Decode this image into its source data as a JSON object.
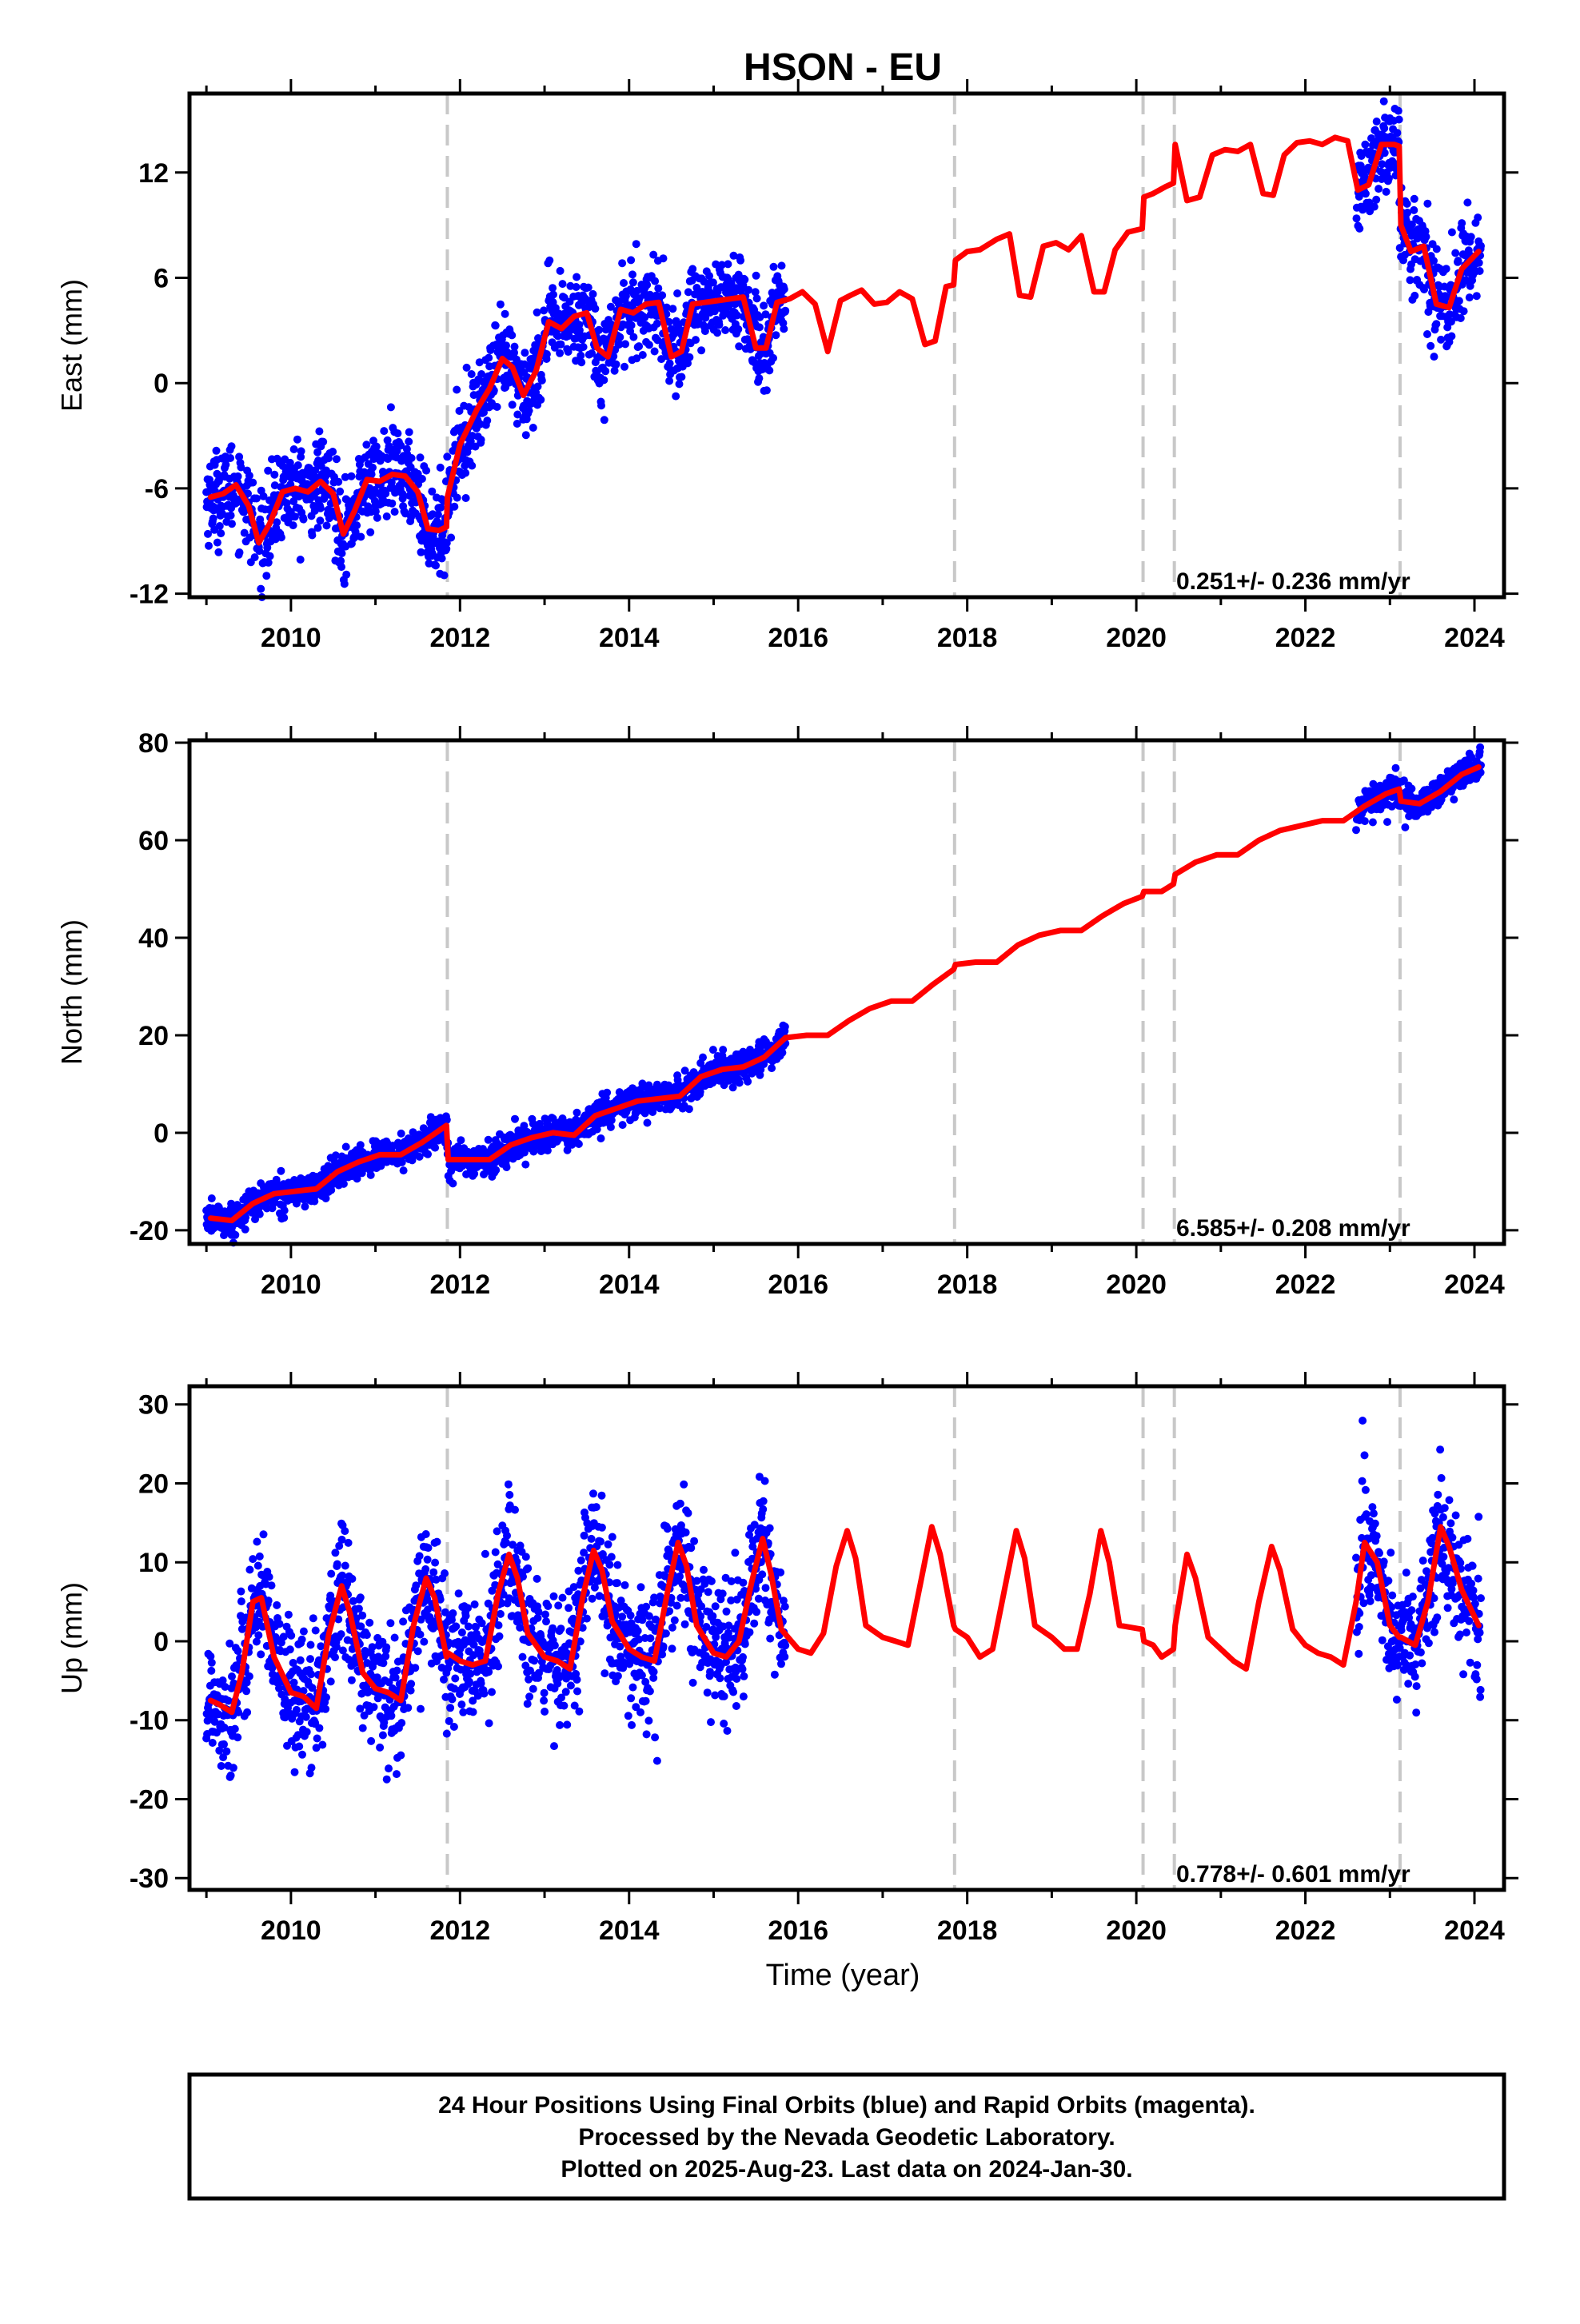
{
  "title": "HSON - EU",
  "xlabel": "Time (year)",
  "footer": {
    "line1": "24 Hour Positions Using Final Orbits (blue) and Rapid Orbits (magenta).",
    "line2": "Processed by the Nevada Geodetic Laboratory.",
    "line3": "Plotted on 2025-Aug-23. Last data on 2024-Jan-30."
  },
  "colors": {
    "observations": "#0000ff",
    "model": "#ff0000",
    "offsets": "#c8c8c8",
    "frame": "#000000"
  },
  "chart_data": [
    {
      "type": "scatter",
      "panel": "east",
      "ylabel": "East (mm)",
      "xlim": [
        2008.8,
        2024.35
      ],
      "ylim": [
        -12.2,
        16.5
      ],
      "xticks": [
        2010,
        2012,
        2014,
        2016,
        2018,
        2020,
        2022,
        2024
      ],
      "yticks": [
        -12,
        -6,
        0,
        6,
        12
      ],
      "rate_label": "0.251+/- 0.236 mm/yr",
      "offset_epochs": [
        2011.85,
        2017.85,
        2020.08,
        2020.45,
        2023.12
      ],
      "series": [
        {
          "type": "line",
          "x": [
            2009.05,
            2009.2,
            2009.35,
            2009.5,
            2009.62,
            2009.75,
            2009.9,
            2010.05,
            2010.2,
            2010.35,
            2010.5,
            2010.62,
            2010.75,
            2010.9,
            2011.05,
            2011.2,
            2011.35,
            2011.5,
            2011.62,
            2011.75,
            2011.84,
            2011.85,
            2012.0,
            2012.2,
            2012.35,
            2012.5,
            2012.62,
            2012.75,
            2012.9,
            2013.05,
            2013.2,
            2013.35,
            2013.5,
            2013.62,
            2013.75,
            2013.9,
            2014.05,
            2014.2,
            2014.35,
            2014.5,
            2014.62,
            2014.75,
            2014.9,
            2015.05,
            2015.2,
            2015.35,
            2015.5,
            2015.62,
            2015.75,
            2015.9,
            2016.05,
            2016.2,
            2016.35,
            2016.5,
            2016.62,
            2016.75,
            2016.9,
            2017.05,
            2017.2,
            2017.35,
            2017.5,
            2017.62,
            2017.75,
            2017.84,
            2017.86,
            2018.0,
            2018.15,
            2018.35,
            2018.5,
            2018.62,
            2018.75,
            2018.9,
            2019.05,
            2019.2,
            2019.35,
            2019.5,
            2019.62,
            2019.75,
            2019.9,
            2020.07,
            2020.09,
            2020.2,
            2020.35,
            2020.44,
            2020.46,
            2020.6,
            2020.75,
            2020.9,
            2021.05,
            2021.2,
            2021.35,
            2021.5,
            2021.62,
            2021.75,
            2021.9,
            2022.05,
            2022.2,
            2022.35,
            2022.5,
            2022.62,
            2022.75,
            2022.9,
            2023.05,
            2023.11,
            2023.13,
            2023.25,
            2023.4,
            2023.55,
            2023.7,
            2023.85,
            2024.05
          ],
          "values": [
            -6.5,
            -6.3,
            -5.8,
            -7.0,
            -9.1,
            -8.0,
            -6.2,
            -6.0,
            -6.2,
            -5.6,
            -6.3,
            -8.6,
            -7.3,
            -5.5,
            -5.6,
            -5.2,
            -5.3,
            -6.2,
            -8.3,
            -8.4,
            -8.2,
            -6.5,
            -3.5,
            -1.5,
            -0.3,
            1.4,
            0.9,
            -0.7,
            0.7,
            3.5,
            3.1,
            3.8,
            4.0,
            2.0,
            1.5,
            4.2,
            4.0,
            4.5,
            4.6,
            1.5,
            1.8,
            4.5,
            4.6,
            4.7,
            4.8,
            4.9,
            2.0,
            2.0,
            4.6,
            4.8,
            5.2,
            4.5,
            1.8,
            4.7,
            5.0,
            5.3,
            4.5,
            4.6,
            5.2,
            4.8,
            2.2,
            2.4,
            5.5,
            5.6,
            7.0,
            7.5,
            7.6,
            8.2,
            8.5,
            5.0,
            4.9,
            7.8,
            8.0,
            7.6,
            8.4,
            5.2,
            5.2,
            7.6,
            8.6,
            8.8,
            10.6,
            10.8,
            11.2,
            11.4,
            13.6,
            10.4,
            10.6,
            13.0,
            13.3,
            13.2,
            13.6,
            10.8,
            10.7,
            13.0,
            13.7,
            13.8,
            13.6,
            14.0,
            13.8,
            11.0,
            11.3,
            13.6,
            13.6,
            13.5,
            9.0,
            7.5,
            7.8,
            4.5,
            4.3,
            6.5,
            7.5
          ]
        }
      ]
    },
    {
      "type": "scatter",
      "panel": "north",
      "ylabel": "North (mm)",
      "xlim": [
        2008.8,
        2024.35
      ],
      "ylim": [
        -22.8,
        80.5
      ],
      "xticks": [
        2010,
        2012,
        2014,
        2016,
        2018,
        2020,
        2022,
        2024
      ],
      "yticks": [
        -20,
        0,
        20,
        40,
        60,
        80
      ],
      "rate_label": "6.585+/- 0.208 mm/yr",
      "offset_epochs": [
        2011.85,
        2017.85,
        2020.08,
        2020.45,
        2023.12
      ],
      "series": [
        {
          "type": "line",
          "x": [
            2009.05,
            2009.3,
            2009.55,
            2009.8,
            2010.05,
            2010.3,
            2010.55,
            2010.8,
            2011.05,
            2011.3,
            2011.55,
            2011.84,
            2011.86,
            2012.1,
            2012.35,
            2012.6,
            2012.85,
            2013.1,
            2013.35,
            2013.6,
            2013.85,
            2014.1,
            2014.35,
            2014.6,
            2014.85,
            2015.1,
            2015.35,
            2015.6,
            2015.85,
            2016.1,
            2016.35,
            2016.6,
            2016.85,
            2017.1,
            2017.35,
            2017.6,
            2017.84,
            2017.86,
            2018.1,
            2018.35,
            2018.6,
            2018.85,
            2019.1,
            2019.35,
            2019.6,
            2019.85,
            2020.07,
            2020.09,
            2020.3,
            2020.44,
            2020.46,
            2020.7,
            2020.95,
            2021.2,
            2021.45,
            2021.7,
            2021.95,
            2022.2,
            2022.45,
            2022.7,
            2022.95,
            2023.11,
            2023.13,
            2023.35,
            2023.6,
            2023.85,
            2024.05
          ],
          "values": [
            -17.5,
            -18.0,
            -14.5,
            -12.5,
            -12.0,
            -11.5,
            -8.0,
            -6.0,
            -4.5,
            -4.5,
            -2.0,
            1.5,
            -5.5,
            -5.5,
            -5.5,
            -2.5,
            -1.0,
            0.0,
            -0.5,
            3.5,
            5.0,
            6.5,
            7.0,
            7.5,
            11.5,
            13.0,
            13.5,
            15.5,
            19.5,
            20.0,
            20.0,
            23.0,
            25.5,
            27.0,
            27.0,
            30.5,
            33.5,
            34.5,
            35.0,
            35.0,
            38.5,
            40.5,
            41.5,
            41.5,
            44.5,
            47.0,
            48.5,
            49.5,
            49.5,
            51.0,
            53.0,
            55.5,
            57.0,
            57.0,
            60.0,
            62.0,
            63.0,
            64.0,
            64.0,
            67.0,
            69.5,
            70.5,
            68.0,
            67.5,
            70.0,
            73.5,
            75.0
          ]
        }
      ]
    },
    {
      "type": "scatter",
      "panel": "up",
      "ylabel": "Up (mm)",
      "xlim": [
        2008.8,
        2024.35
      ],
      "ylim": [
        -31.5,
        32.3
      ],
      "xticks": [
        2010,
        2012,
        2014,
        2016,
        2018,
        2020,
        2022,
        2024
      ],
      "yticks": [
        -30,
        -20,
        -10,
        0,
        10,
        20,
        30
      ],
      "rate_label": "0.778+/- 0.601 mm/yr",
      "offset_epochs": [
        2011.85,
        2017.85,
        2020.08,
        2020.45,
        2023.12
      ],
      "series": [
        {
          "type": "line",
          "x": [
            2009.05,
            2009.15,
            2009.3,
            2009.42,
            2009.55,
            2009.65,
            2009.8,
            2010.0,
            2010.15,
            2010.3,
            2010.45,
            2010.6,
            2010.7,
            2010.85,
            2011.0,
            2011.15,
            2011.3,
            2011.45,
            2011.6,
            2011.7,
            2011.84,
            2011.86,
            2012.0,
            2012.15,
            2012.3,
            2012.45,
            2012.58,
            2012.68,
            2012.8,
            2013.0,
            2013.15,
            2013.3,
            2013.45,
            2013.58,
            2013.68,
            2013.8,
            2014.0,
            2014.15,
            2014.3,
            2014.45,
            2014.58,
            2014.68,
            2014.8,
            2015.0,
            2015.15,
            2015.3,
            2015.45,
            2015.58,
            2015.68,
            2015.8,
            2016.0,
            2016.15,
            2016.3,
            2016.45,
            2016.58,
            2016.68,
            2016.8,
            2017.0,
            2017.15,
            2017.3,
            2017.45,
            2017.58,
            2017.68,
            2017.84,
            2017.86,
            2018.0,
            2018.15,
            2018.3,
            2018.45,
            2018.58,
            2018.68,
            2018.8,
            2019.0,
            2019.15,
            2019.3,
            2019.45,
            2019.58,
            2019.68,
            2019.8,
            2020.07,
            2020.09,
            2020.2,
            2020.3,
            2020.44,
            2020.46,
            2020.6,
            2020.7,
            2020.85,
            2021.0,
            2021.15,
            2021.3,
            2021.45,
            2021.6,
            2021.7,
            2021.85,
            2022.0,
            2022.15,
            2022.3,
            2022.45,
            2022.6,
            2022.7,
            2022.85,
            2023.0,
            2023.11,
            2023.13,
            2023.3,
            2023.45,
            2023.6,
            2023.7,
            2023.85,
            2024.05
          ],
          "values": [
            -7.5,
            -8.0,
            -9.0,
            -4.0,
            5.0,
            5.5,
            -2.0,
            -6.5,
            -7.0,
            -8.5,
            1.0,
            7.0,
            3.5,
            -4.0,
            -6.0,
            -6.5,
            -7.5,
            2.0,
            8.0,
            5.5,
            -2.0,
            -1.5,
            -2.5,
            -3.0,
            -2.5,
            6.0,
            11.0,
            8.0,
            1.0,
            -2.0,
            -2.5,
            -3.5,
            5.5,
            11.5,
            9.0,
            2.5,
            -1.0,
            -2.0,
            -2.5,
            6.0,
            12.5,
            9.5,
            2.0,
            -1.5,
            -2.0,
            0.0,
            7.5,
            13.0,
            8.5,
            1.5,
            -1.0,
            -1.5,
            1.0,
            9.5,
            14.0,
            10.5,
            2.0,
            0.5,
            0.0,
            -0.5,
            7.5,
            14.5,
            11.0,
            2.0,
            1.5,
            0.5,
            -2.0,
            -1.0,
            7.0,
            14.0,
            10.5,
            2.0,
            0.5,
            -1.0,
            -1.0,
            6.0,
            14.0,
            10.0,
            2.0,
            1.5,
            0.0,
            -0.5,
            -2.0,
            -1.0,
            2.0,
            11.0,
            8.0,
            0.5,
            -1.0,
            -2.5,
            -3.5,
            5.0,
            12.0,
            9.0,
            1.5,
            -0.5,
            -1.5,
            -2.0,
            -3.0,
            5.0,
            12.5,
            10.0,
            2.0,
            0.5,
            0.5,
            -0.5,
            5.0,
            14.5,
            12.0,
            6.5,
            2.0
          ]
        }
      ]
    }
  ]
}
